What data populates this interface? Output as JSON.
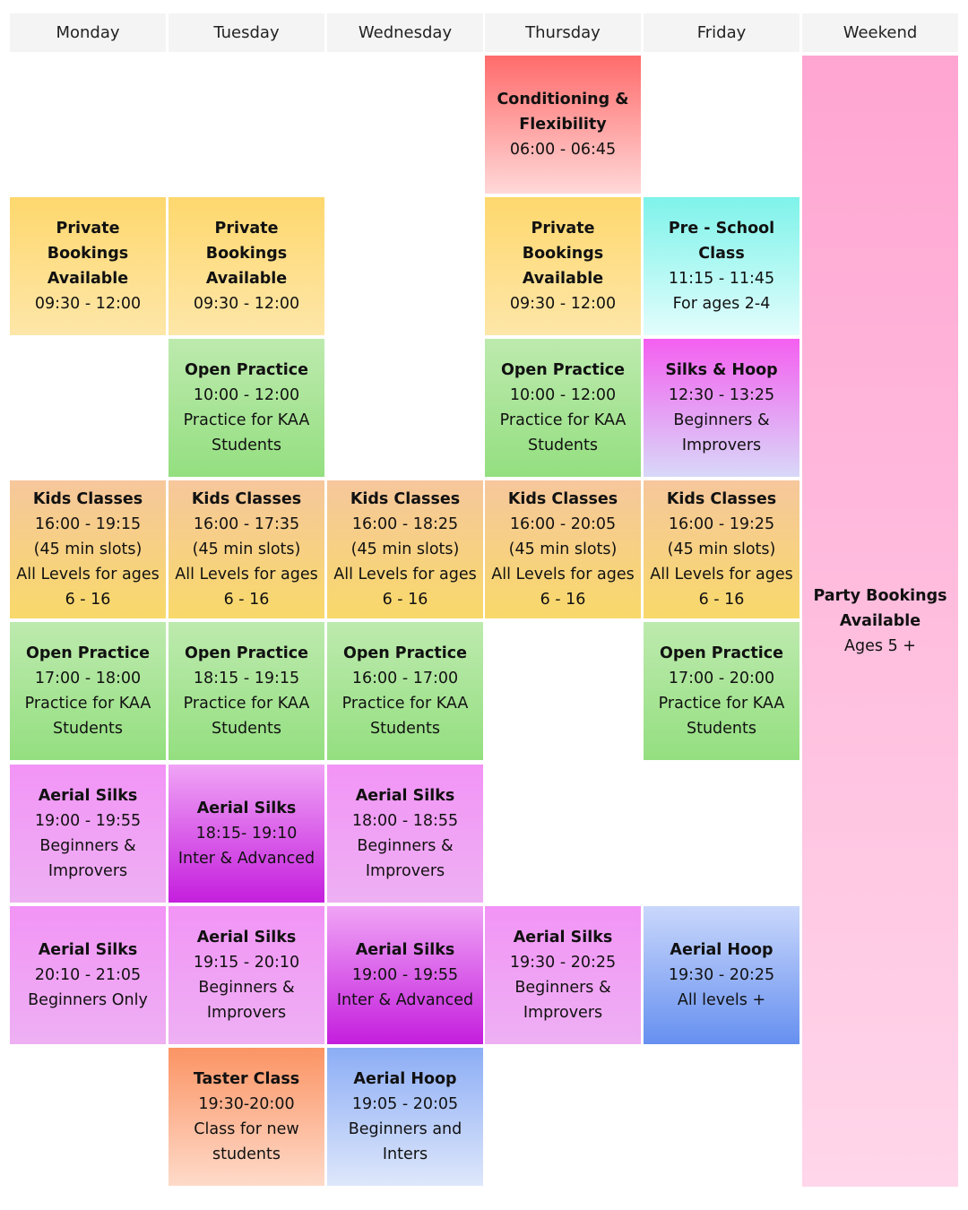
{
  "days": [
    "Monday",
    "Tuesday",
    "Wednesday",
    "Thursday",
    "Friday",
    "Weekend"
  ],
  "cells": {
    "thu_cond": {
      "title": "Conditioning & Flexibility",
      "lines": [
        "06:00 - 06:45"
      ]
    },
    "mon_priv": {
      "title": "Private Bookings Available",
      "lines": [
        "09:30 - 12:00"
      ]
    },
    "tue_priv": {
      "title": "Private Bookings Available",
      "lines": [
        "09:30 - 12:00"
      ]
    },
    "thu_priv": {
      "title": "Private Bookings Available",
      "lines": [
        "09:30 - 12:00"
      ]
    },
    "fri_pre": {
      "title": "Pre - School Class",
      "lines": [
        "11:15 - 11:45",
        "For ages 2-4"
      ]
    },
    "tue_open1": {
      "title": "Open Practice",
      "lines": [
        "10:00 - 12:00",
        "Practice for KAA Students"
      ]
    },
    "thu_open1": {
      "title": "Open Practice",
      "lines": [
        "10:00 - 12:00",
        "Practice for KAA Students"
      ]
    },
    "fri_sh": {
      "title": "Silks & Hoop",
      "lines": [
        "12:30 - 13:25",
        "Beginners & Improvers"
      ]
    },
    "mon_kids": {
      "title": "Kids Classes",
      "lines": [
        "16:00 - 19:15",
        "(45 min slots)",
        "All Levels for ages 6 - 16"
      ]
    },
    "tue_kids": {
      "title": "Kids Classes",
      "lines": [
        "16:00 - 17:35",
        "(45 min slots)",
        "All Levels for ages 6 - 16"
      ]
    },
    "wed_kids": {
      "title": "Kids Classes",
      "lines": [
        "16:00 - 18:25",
        "(45 min slots)",
        "All Levels for ages 6 - 16"
      ]
    },
    "thu_kids": {
      "title": "Kids Classes",
      "lines": [
        "16:00 - 20:05",
        "(45 min slots)",
        "All Levels for ages 6 - 16"
      ]
    },
    "fri_kids": {
      "title": "Kids Classes",
      "lines": [
        "16:00 - 19:25",
        "(45 min slots)",
        "All Levels for ages 6 - 16"
      ]
    },
    "mon_open": {
      "title": "Open Practice",
      "lines": [
        "17:00 - 18:00",
        "Practice for KAA Students"
      ]
    },
    "tue_open2": {
      "title": "Open Practice",
      "lines": [
        "18:15 - 19:15",
        "Practice for KAA Students"
      ]
    },
    "wed_open": {
      "title": "Open Practice",
      "lines": [
        "16:00 - 17:00",
        "Practice for KAA Students"
      ]
    },
    "fri_open": {
      "title": "Open Practice",
      "lines": [
        "17:00 - 20:00",
        "Practice for KAA Students"
      ]
    },
    "mon_silk1": {
      "title": "Aerial Silks",
      "lines": [
        "19:00 - 19:55",
        "Beginners & Improvers"
      ]
    },
    "tue_silk1": {
      "title": "Aerial Silks",
      "lines": [
        "18:15- 19:10",
        "Inter & Advanced"
      ]
    },
    "wed_silk1": {
      "title": "Aerial Silks",
      "lines": [
        "18:00 - 18:55",
        "Beginners & Improvers"
      ]
    },
    "mon_silk2": {
      "title": "Aerial Silks",
      "lines": [
        "20:10 - 21:05",
        "Beginners Only"
      ]
    },
    "tue_silk2": {
      "title": "Aerial Silks",
      "lines": [
        "19:15 - 20:10",
        "Beginners & Improvers"
      ]
    },
    "wed_silk2": {
      "title": "Aerial Silks",
      "lines": [
        "19:00 - 19:55",
        "Inter & Advanced"
      ]
    },
    "thu_silk": {
      "title": "Aerial Silks",
      "lines": [
        "19:30 - 20:25",
        "Beginners & Improvers"
      ]
    },
    "fri_hoop": {
      "title": "Aerial Hoop",
      "lines": [
        "19:30 - 20:25",
        "All levels +"
      ]
    },
    "tue_taster": {
      "title": "Taster Class",
      "lines": [
        "19:30-20:00",
        "Class for new students"
      ]
    },
    "wed_hoop": {
      "title": "Aerial Hoop",
      "lines": [
        "19:05 - 20:05",
        "Beginners and Inters"
      ]
    },
    "weekend_party": {
      "title": "Party Bookings Available",
      "lines": [
        "Ages 5 +"
      ]
    }
  }
}
